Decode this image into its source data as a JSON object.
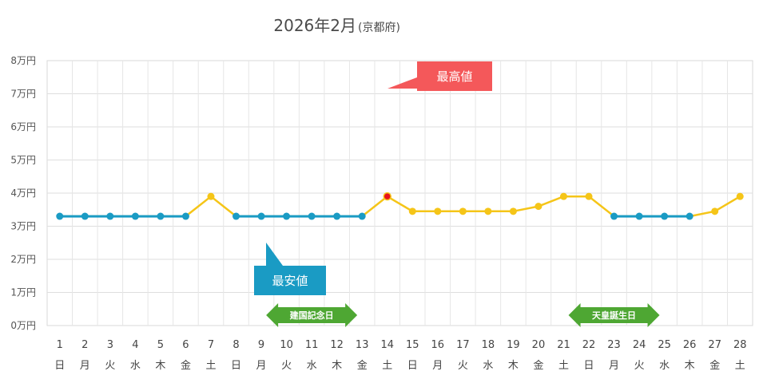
{
  "chart_data": {
    "type": "line",
    "title": "2026年2月",
    "subtitle": "(京都府)",
    "y_tick_labels": [
      "0万円",
      "1万円",
      "2万円",
      "3万円",
      "4万円",
      "5万円",
      "6万円",
      "7万円",
      "8万円"
    ],
    "ylim": [
      0,
      80000
    ],
    "grid": true,
    "x": [
      1,
      2,
      3,
      4,
      5,
      6,
      7,
      8,
      9,
      10,
      11,
      12,
      13,
      14,
      15,
      16,
      17,
      18,
      19,
      20,
      21,
      22,
      23,
      24,
      25,
      26,
      27,
      28
    ],
    "weekdays": [
      "日",
      "月",
      "火",
      "水",
      "木",
      "金",
      "土",
      "日",
      "月",
      "火",
      "水",
      "木",
      "金",
      "土",
      "日",
      "月",
      "火",
      "水",
      "木",
      "金",
      "土",
      "日",
      "月",
      "火",
      "水",
      "木",
      "金",
      "土"
    ],
    "series": [
      {
        "color": "#f5c518",
        "values": [
          33000,
          33000,
          33000,
          33000,
          33000,
          33000,
          39000,
          33000,
          33000,
          33000,
          33000,
          33000,
          33000,
          39000,
          34500,
          34500,
          34500,
          34500,
          34500,
          36000,
          39000,
          39000,
          33000,
          33000,
          33000,
          33000,
          34500,
          39000
        ]
      }
    ],
    "lowest_price_color": "#1a9bc4",
    "lowest_price_days": [
      1,
      2,
      3,
      4,
      5,
      6,
      8,
      9,
      10,
      11,
      12,
      13,
      23,
      24,
      25,
      26
    ],
    "highest_price_day": 14,
    "highest_price_color": "#e8141c",
    "annotations": {
      "max_label": "最高値",
      "max_color": "#f4585a",
      "min_label": "最安値",
      "min_color": "#1a9bc4"
    },
    "holidays": [
      {
        "label": "建国記念日",
        "day": 11
      },
      {
        "label": "天皇誕生日",
        "day": 23
      }
    ],
    "holiday_color": "#4ea733"
  }
}
